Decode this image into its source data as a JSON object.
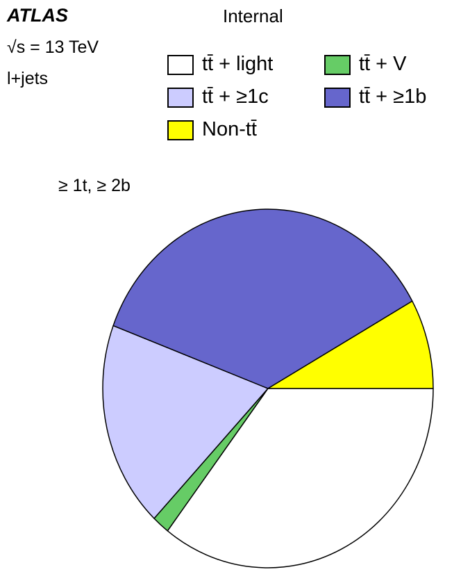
{
  "header": {
    "experiment": "ATLAS",
    "status": "Internal",
    "energy": "√s = 13 TeV",
    "channel": "l+jets"
  },
  "region_label": "≥ 1t, ≥ 2b",
  "legend": {
    "entries": [
      {
        "label": "tt̄ + light",
        "color": "#ffffff"
      },
      {
        "label": "tt̄ + V",
        "color": "#66cc66"
      },
      {
        "label": "tt̄ + ≥1c",
        "color": "#ccccff"
      },
      {
        "label": "tt̄ + ≥1b",
        "color": "#6666cc"
      },
      {
        "label": "Non-tt̄",
        "color": "#ffff00"
      }
    ]
  },
  "chart_data": {
    "type": "pie",
    "title": "≥ 1t, ≥ 2b",
    "slices": [
      {
        "name": "tt̄ + light",
        "fraction": 0.354,
        "color": "#ffffff"
      },
      {
        "name": "tt̄ + V",
        "fraction": 0.017,
        "color": "#66cc66"
      },
      {
        "name": "tt̄ + ≥1c",
        "fraction": 0.186,
        "color": "#ccccff"
      },
      {
        "name": "tt̄ + ≥1b",
        "fraction": 0.362,
        "color": "#6666cc"
      },
      {
        "name": "Non-tt̄",
        "fraction": 0.081,
        "color": "#ffff00"
      }
    ],
    "start_angle_deg": 0,
    "direction": "clockwise-on-screen",
    "legend_position": "top-right"
  }
}
